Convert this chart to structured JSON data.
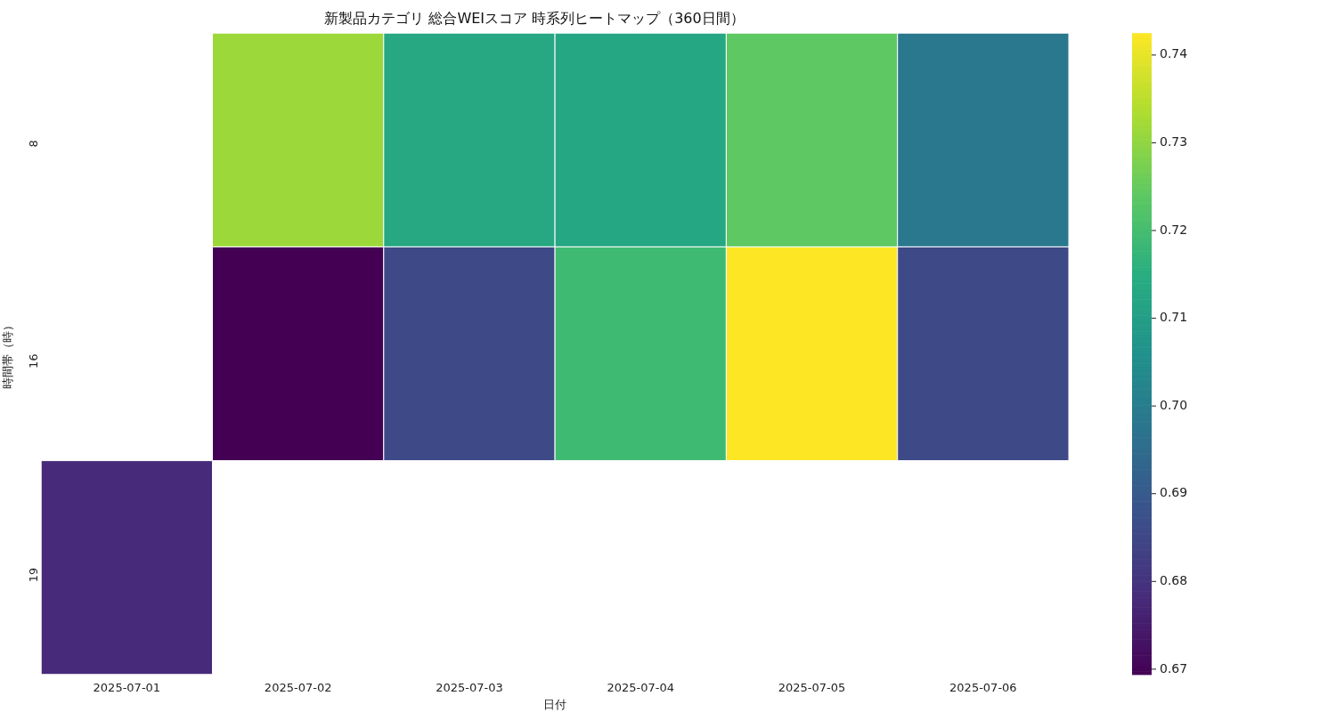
{
  "chart_data": {
    "type": "heatmap",
    "title": "新製品カテゴリ 総合WEIスコア 時系列ヒートマップ（360日間）",
    "xlabel": "日付",
    "ylabel": "時間帯（時）",
    "categories": [
      "2025-07-01",
      "2025-07-02",
      "2025-07-03",
      "2025-07-04",
      "2025-07-05",
      "2025-07-06"
    ],
    "y_categories": [
      "8",
      "16",
      "19"
    ],
    "cells": [
      [
        null,
        0.7315,
        0.7133,
        0.713,
        0.7242,
        0.6986
      ],
      [
        null,
        0.6694,
        0.6855,
        0.719,
        0.7425,
        0.6855
      ],
      [
        0.678,
        null,
        null,
        null,
        null,
        null
      ]
    ],
    "clim": [
      0.6694,
      0.7425
    ],
    "cticks": [
      0.67,
      0.68,
      0.69,
      {
        "value": 0.7,
        "label": "0.70"
      },
      0.71,
      0.72,
      0.73,
      0.74
    ]
  }
}
